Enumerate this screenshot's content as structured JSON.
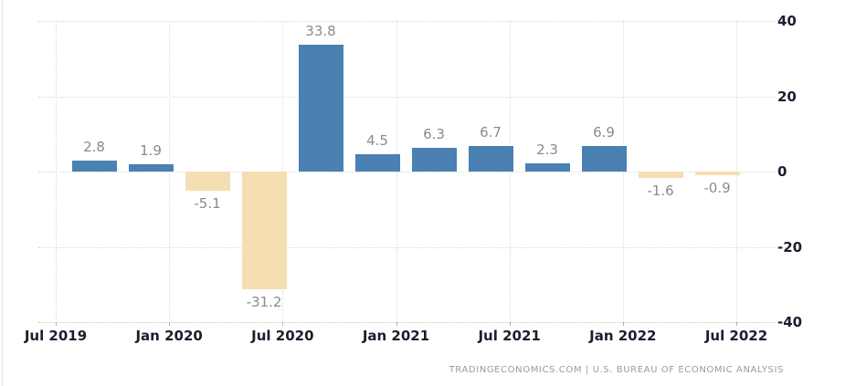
{
  "chart_data": {
    "type": "bar",
    "title": "",
    "categories": [
      "2019-Q3",
      "2019-Q4",
      "2020-Q1",
      "2020-Q2",
      "2020-Q3",
      "2020-Q4",
      "2021-Q1",
      "2021-Q2",
      "2021-Q3",
      "2021-Q4",
      "2022-Q1",
      "2022-Q2"
    ],
    "values": [
      2.8,
      1.9,
      -5.1,
      -31.2,
      33.8,
      4.5,
      6.3,
      6.7,
      2.3,
      6.9,
      -1.6,
      -0.9
    ],
    "data_labels": [
      "2.8",
      "1.9",
      "-5.1",
      "-31.2",
      "33.8",
      "4.5",
      "6.3",
      "6.7",
      "2.3",
      "6.9",
      "-1.6",
      "-0.9"
    ],
    "x_tick_labels": [
      "Jul 2019",
      "Jan 2020",
      "Jul 2020",
      "Jan 2021",
      "Jul 2021",
      "Jan 2022",
      "Jul 2022"
    ],
    "y_ticks": [
      40,
      20,
      0,
      -20,
      -40
    ],
    "y_tick_labels": [
      "40",
      "20",
      "0",
      "-20",
      "-40"
    ],
    "ylim": [
      -40,
      40
    ],
    "grid": "dotted",
    "legend": "none",
    "y_axis_side": "right",
    "colors": {
      "positive_bar": "#4a80b2",
      "negative_bar": "#f5dfb2",
      "value_label": "#8b8b8b",
      "axis_label": "#1d1d30",
      "gridline": "#d9d9d9",
      "attribution": "#9b9b9b"
    },
    "attribution": "TRADINGECONOMICS.COM | U.S. BUREAU OF ECONOMIC ANALYSIS"
  }
}
